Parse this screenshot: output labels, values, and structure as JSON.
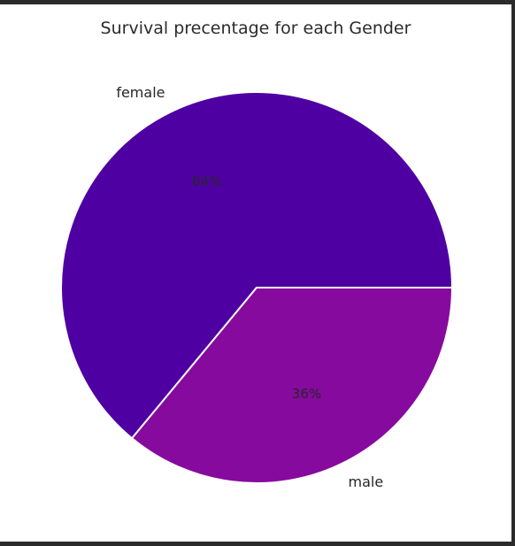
{
  "chart_data": {
    "type": "pie",
    "title": "Survival precentage for each Gender",
    "slices": [
      {
        "label": "female",
        "value": 64,
        "pct_label": "64%",
        "color": "#4f00a2"
      },
      {
        "label": "male",
        "value": 36,
        "pct_label": "36%",
        "color": "#860a9e"
      }
    ],
    "start_angle_deg": 0,
    "direction": "counterclockwise",
    "edge_color": "#ffffff"
  }
}
